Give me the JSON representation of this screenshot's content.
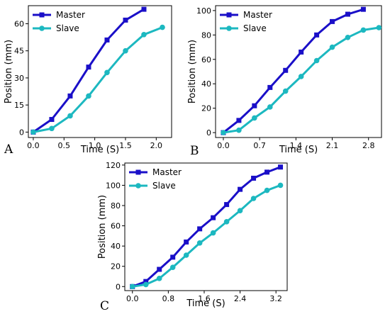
{
  "chart_data": [
    {
      "type": "line",
      "panel_label": "A",
      "xlabel": "Time (S)",
      "ylabel": "Position (mm)",
      "xlim": [
        -0.08,
        2.25
      ],
      "ylim": [
        -3,
        70
      ],
      "xticks": [
        0.0,
        0.5,
        1.0,
        1.5,
        2.0
      ],
      "xtick_labels": [
        "0.0",
        "0.5",
        "1.0",
        "1.5",
        "2.0"
      ],
      "yticks": [
        0,
        15,
        30,
        45,
        60
      ],
      "ytick_labels": [
        "0",
        "15",
        "30",
        "45",
        "60"
      ],
      "legend_position": "top-left",
      "series": [
        {
          "name": "Master",
          "color": "#1a0fc8",
          "marker": "square",
          "x": [
            0.0,
            0.3,
            0.6,
            0.9,
            1.2,
            1.5,
            1.8
          ],
          "y": [
            0,
            7,
            20,
            36,
            51,
            62,
            68
          ]
        },
        {
          "name": "Slave",
          "color": "#1cb8c0",
          "marker": "circle",
          "x": [
            0.0,
            0.3,
            0.6,
            0.9,
            1.2,
            1.5,
            1.8,
            2.1
          ],
          "y": [
            0,
            2,
            9,
            20,
            33,
            45,
            54,
            58
          ]
        }
      ]
    },
    {
      "type": "line",
      "panel_label": "B",
      "xlabel": "Time (S)",
      "ylabel": "Position (mm)",
      "xlim": [
        -0.15,
        3.05
      ],
      "ylim": [
        -4,
        104
      ],
      "xticks": [
        0.0,
        0.7,
        1.4,
        2.1,
        2.8
      ],
      "xtick_labels": [
        "0.0",
        "0.7",
        "1.4",
        "2.1",
        "2.8"
      ],
      "yticks": [
        0,
        20,
        40,
        60,
        80,
        100
      ],
      "ytick_labels": [
        "0",
        "20",
        "40",
        "60",
        "80",
        "100"
      ],
      "legend_position": "top-left",
      "series": [
        {
          "name": "Master",
          "color": "#1a0fc8",
          "marker": "square",
          "x": [
            0.0,
            0.3,
            0.6,
            0.9,
            1.2,
            1.5,
            1.8,
            2.1,
            2.4,
            2.7
          ],
          "y": [
            0,
            10,
            22,
            37,
            51,
            66,
            80,
            91,
            97,
            101
          ]
        },
        {
          "name": "Slave",
          "color": "#1cb8c0",
          "marker": "circle",
          "x": [
            0.0,
            0.3,
            0.6,
            0.9,
            1.2,
            1.5,
            1.8,
            2.1,
            2.4,
            2.7,
            3.0
          ],
          "y": [
            0,
            2,
            12,
            21,
            34,
            46,
            59,
            70,
            78,
            84,
            86
          ]
        }
      ]
    },
    {
      "type": "line",
      "panel_label": "C",
      "xlabel": "Time (S)",
      "ylabel": "Position (mm)",
      "xlim": [
        -0.17,
        3.45
      ],
      "ylim": [
        -4,
        122
      ],
      "xticks": [
        0.0,
        0.8,
        1.6,
        2.4,
        3.2
      ],
      "xtick_labels": [
        "0.0",
        "0.8",
        "1.6",
        "2.4",
        "3.2"
      ],
      "yticks": [
        0,
        20,
        40,
        60,
        80,
        100,
        120
      ],
      "ytick_labels": [
        "0",
        "20",
        "40",
        "60",
        "80",
        "100",
        "120"
      ],
      "legend_position": "top-left",
      "series": [
        {
          "name": "Master",
          "color": "#1a0fc8",
          "marker": "square",
          "x": [
            0.0,
            0.3,
            0.6,
            0.9,
            1.2,
            1.5,
            1.8,
            2.1,
            2.4,
            2.7,
            3.0,
            3.3
          ],
          "y": [
            0,
            5,
            17,
            29,
            44,
            57,
            68,
            81,
            96,
            107,
            113,
            118
          ]
        },
        {
          "name": "Slave",
          "color": "#1cb8c0",
          "marker": "circle",
          "x": [
            0.0,
            0.3,
            0.6,
            0.9,
            1.2,
            1.5,
            1.8,
            2.1,
            2.4,
            2.7,
            3.0,
            3.3
          ],
          "y": [
            0,
            2,
            8,
            19,
            31,
            43,
            53,
            64,
            75,
            87,
            95,
            100
          ]
        }
      ]
    }
  ]
}
